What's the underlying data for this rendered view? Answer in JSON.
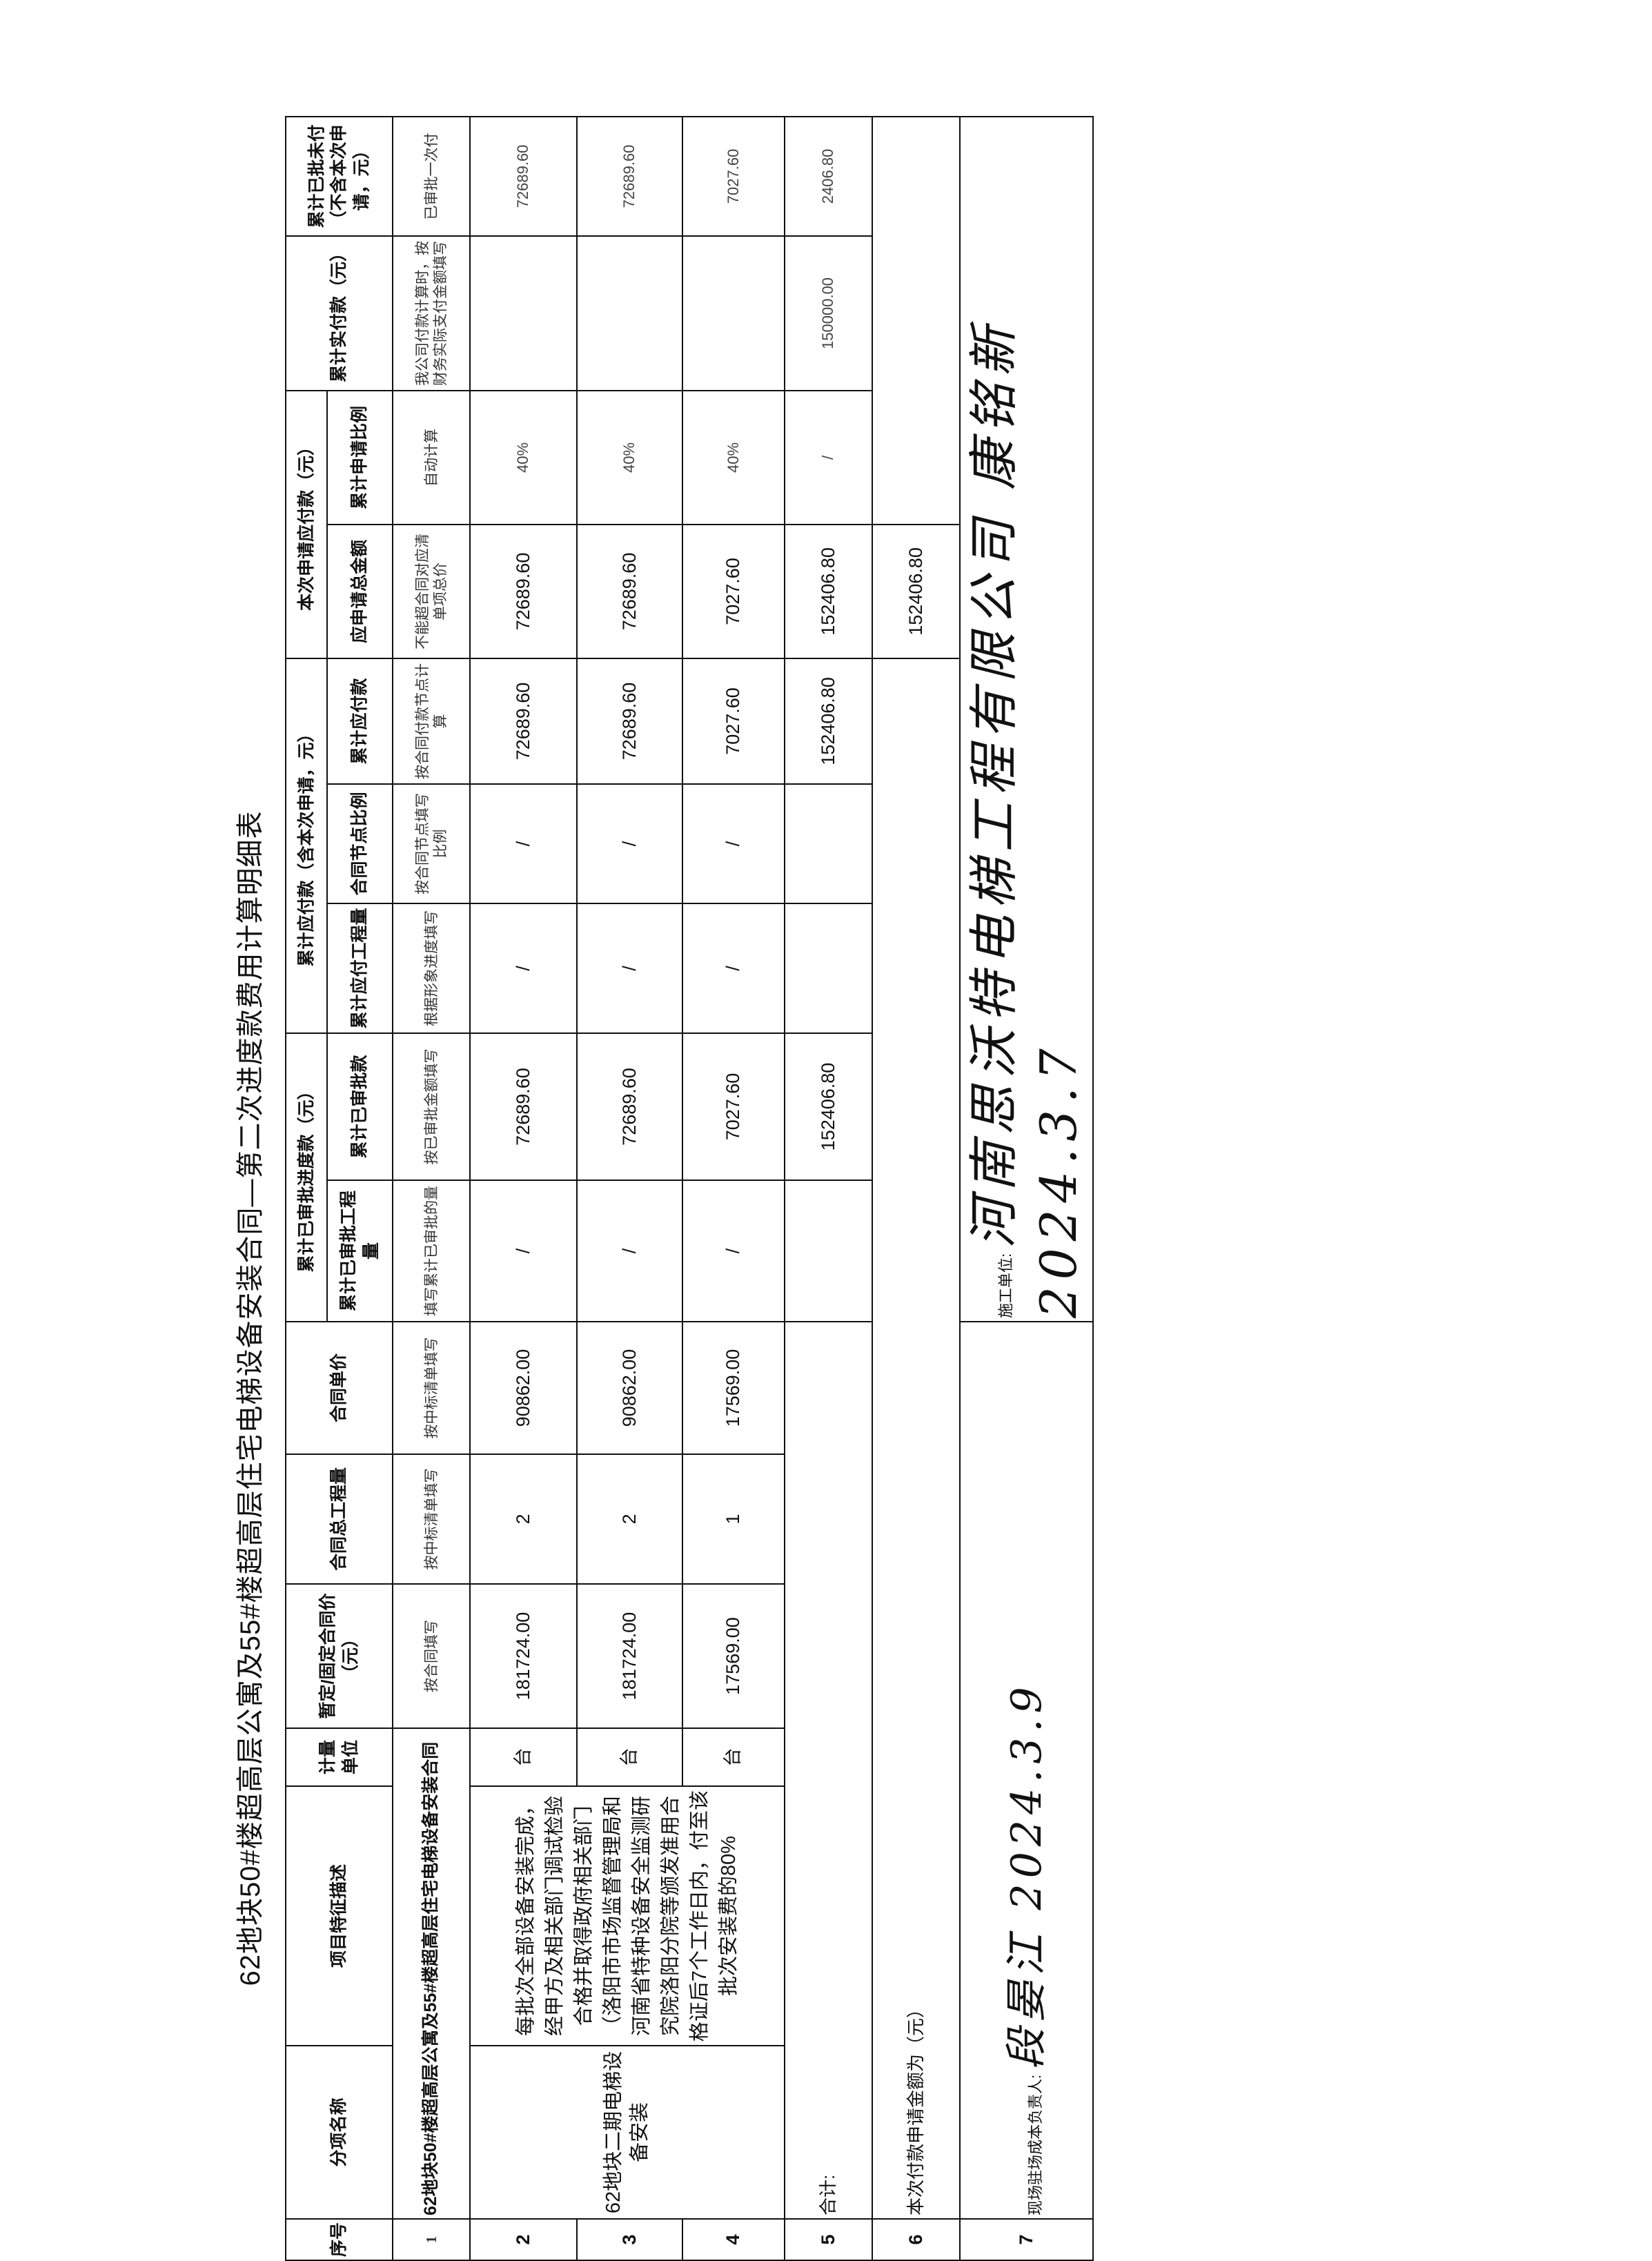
{
  "title": "62地块50#楼超高层公寓及55#楼超高层住宅电梯设备安装合同—第二次进度款费用计算明细表",
  "headers": {
    "seq": "序号",
    "item_name": "分项名称",
    "item_desc": "项目特征描述",
    "unit": "计量单位",
    "contract_price": "暂定/固定合同价（元）",
    "contract_qty": "合同总工程量",
    "unit_price": "合同单价",
    "group_approved": "累计已审批进度款（元）",
    "approved_qty": "累计已审批工程量",
    "approved_amount": "累计已审批款",
    "group_payable": "累计应付款（含本次申请，元）",
    "payable_qty": "累计应付工程量",
    "node_ratio": "合同节点比例",
    "payable_amount": "累计应付款",
    "group_current": "本次申请应付款（元）",
    "apply_total": "应申请总金额",
    "apply_ratio": "累计申请比例",
    "paid": "累计实付款（元）",
    "approved_unpaid": "累计已批未付（不含本次申请，元）"
  },
  "rows": [
    {
      "seq": "1",
      "name": "62地块50#楼超高层公寓及55#楼超高层住宅电梯设备安装合同",
      "contract_price": "按合同填写",
      "contract_qty": "按中标清单填写",
      "unit_price": "按中标清单填写",
      "approved_qty": "填写累计已审批的量",
      "approved_amount": "按已审批金额填写",
      "payable_qty": "根据形象进度填写",
      "node_ratio": "按合同节点填写比例",
      "payable_amount": "按合同付款节点计算",
      "apply_total": "不能超合同对应清单项总价",
      "apply_ratio": "自动计算",
      "paid": "我公司付款计算时，按财务实际支付金额填写",
      "approved_unpaid": "已审批一次付"
    },
    {
      "seq": "2",
      "unit": "台",
      "contract_price": "181724.00",
      "contract_qty": "2",
      "unit_price": "90862.00",
      "approved_qty": "/",
      "approved_amount": "72689.60",
      "payable_qty": "/",
      "node_ratio": "/",
      "payable_amount": "72689.60",
      "apply_total": "72689.60",
      "apply_ratio": "40%",
      "paid": "",
      "approved_unpaid": "72689.60"
    },
    {
      "seq": "3",
      "unit": "台",
      "contract_price": "181724.00",
      "contract_qty": "2",
      "unit_price": "90862.00",
      "approved_qty": "/",
      "approved_amount": "72689.60",
      "payable_qty": "/",
      "node_ratio": "/",
      "payable_amount": "72689.60",
      "apply_total": "72689.60",
      "apply_ratio": "40%",
      "paid": "",
      "approved_unpaid": "72689.60"
    },
    {
      "seq": "4",
      "unit": "台",
      "contract_price": "17569.00",
      "contract_qty": "1",
      "unit_price": "17569.00",
      "approved_qty": "/",
      "approved_amount": "7027.60",
      "payable_qty": "/",
      "node_ratio": "/",
      "payable_amount": "7027.60",
      "apply_total": "7027.60",
      "apply_ratio": "40%",
      "paid": "",
      "approved_unpaid": "7027.60"
    }
  ],
  "group_name": "62地块二期电梯设备安装",
  "group_desc": "每批次全部设备安装完成，经甲方及相关部门调试检验合格并取得政府相关部门（洛阳市市场监督管理局和河南省特种设备安全监测研究院洛阳分院等颁发准用合格证后7个工作日内，付至该批次安装费的80%",
  "total": {
    "seq": "5",
    "label": "合计:",
    "approved_amount": "152406.80",
    "payable_amount": "152406.80",
    "apply_total": "152406.80",
    "apply_ratio": "/",
    "paid": "150000.00",
    "approved_unpaid": "2406.80"
  },
  "current": {
    "seq": "6",
    "label": "本次付款申请金额为（元）",
    "amount": "152406.80"
  },
  "footer": {
    "seq": "7",
    "site_manager_label": "现场驻场成本负责人:",
    "site_manager_signature": "段晏江 2024.3.9",
    "contractor_label": "施工单位:",
    "contractor_signature": "河南思沃特电梯工程有限公司 康铭新 2024.3.7"
  }
}
